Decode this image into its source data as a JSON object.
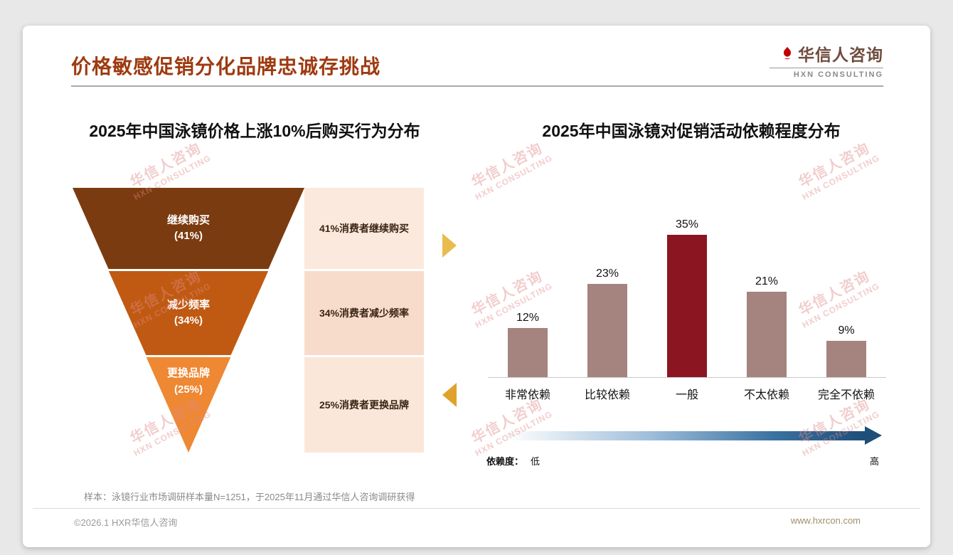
{
  "header": {
    "title": "价格敏感促销分化品牌忠诚存挑战",
    "logo_cn": "华信人咨询",
    "logo_en": "HXN CONSULTING"
  },
  "watermark": {
    "line1": "华信人咨询",
    "line2": "HXN CONSULTING"
  },
  "accents": {
    "title_color": "#9E3A10",
    "highlight_bar": "#8B1621",
    "gradient_end": "#1F4E79",
    "arrow_right": "#E9BC4F",
    "arrow_left": "#DFA32B"
  },
  "chart_data": [
    {
      "type": "funnel",
      "title": "2025年中国泳镜价格上涨10%后购买行为分布",
      "stages": [
        {
          "label": "继续购买",
          "value": 41,
          "annotation": "41%消费者继续购买",
          "color": "#7B3B10",
          "note_bg": "#FBE9DE"
        },
        {
          "label": "减少频率",
          "value": 34,
          "annotation": "34%消费者减少频率",
          "color": "#C05A12",
          "note_bg": "#F8DCCB"
        },
        {
          "label": "更换品牌",
          "value": 25,
          "annotation": "25%消费者更换品牌",
          "color": "#EE8833",
          "note_bg": "#FBE7D9"
        }
      ]
    },
    {
      "type": "bar",
      "title": "2025年中国泳镜对促销活动依赖程度分布",
      "categories": [
        "非常依赖",
        "比较依赖",
        "一般",
        "不太依赖",
        "完全不依赖"
      ],
      "values": [
        12,
        23,
        35,
        21,
        9
      ],
      "unit": "%",
      "ylim": [
        0,
        40
      ],
      "bar_colors": [
        "#A5837E",
        "#A5837E",
        "#8B1621",
        "#A5837E",
        "#A5837E"
      ],
      "axis": {
        "label": "依赖度：",
        "low": "低",
        "high": "高"
      }
    }
  ],
  "footnote": "样本：泳镜行业市场调研样本量N=1251，于2025年11月通过华信人咨询调研获得",
  "footer": {
    "left": "©2026.1 HXR华信人咨询",
    "right": "www.hxrcon.com"
  }
}
